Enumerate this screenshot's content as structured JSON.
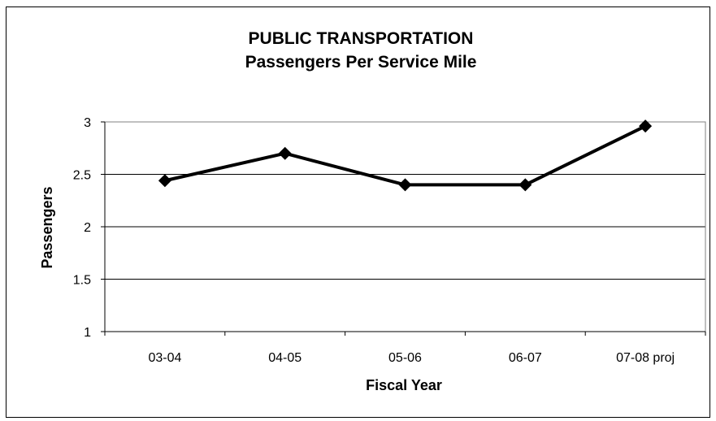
{
  "chart_data": {
    "type": "line",
    "title": "PUBLIC TRANSPORTATION",
    "subtitle": "Passengers Per Service Mile",
    "xlabel": "Fiscal Year",
    "ylabel": "Passengers",
    "categories": [
      "03-04",
      "04-05",
      "05-06",
      "06-07",
      "07-08 proj"
    ],
    "series": [
      {
        "values": [
          2.44,
          2.7,
          2.4,
          2.4,
          2.96
        ]
      }
    ],
    "ylim": [
      1,
      3
    ],
    "yticks": [
      "1",
      "1.5",
      "2",
      "2.5",
      "3"
    ],
    "grid": true,
    "legend": "none",
    "marker": "diamond",
    "colors": {
      "line": "#000000",
      "grid": "#000000",
      "plot_border": "#808080"
    }
  }
}
